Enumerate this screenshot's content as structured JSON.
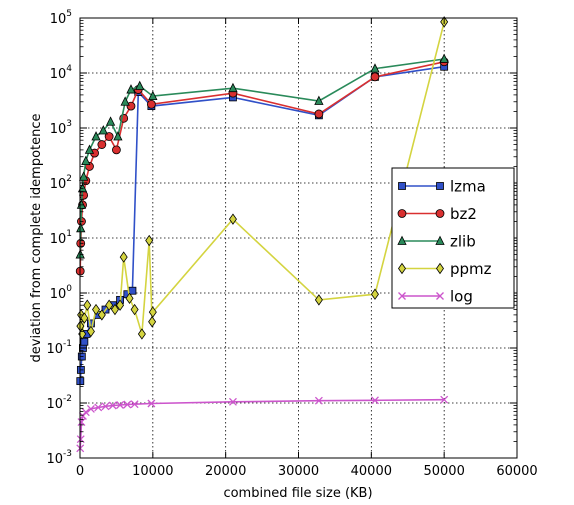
{
  "chart_data": {
    "type": "line",
    "title": "",
    "xlabel": "combined file size (KB)",
    "ylabel": "deviation from complete idempotence",
    "xlim": [
      0,
      60000
    ],
    "ylim": [
      0.001,
      100000
    ],
    "yscale": "log",
    "grid": true,
    "legend_position": "center-right",
    "x_ticks": [
      {
        "value": 0,
        "label": "0"
      },
      {
        "value": 10000,
        "label": "10000"
      },
      {
        "value": 20000,
        "label": "20000"
      },
      {
        "value": 30000,
        "label": "30000"
      },
      {
        "value": 40000,
        "label": "40000"
      },
      {
        "value": 50000,
        "label": "50000"
      },
      {
        "value": 60000,
        "label": "60000"
      }
    ],
    "y_ticks": [
      {
        "value": 0.001,
        "base": "10",
        "exp": "-3"
      },
      {
        "value": 0.01,
        "base": "10",
        "exp": "-2"
      },
      {
        "value": 0.1,
        "base": "10",
        "exp": "-1"
      },
      {
        "value": 1,
        "base": "10",
        "exp": "0"
      },
      {
        "value": 10,
        "base": "10",
        "exp": "1"
      },
      {
        "value": 100,
        "base": "10",
        "exp": "2"
      },
      {
        "value": 1000,
        "base": "10",
        "exp": "3"
      },
      {
        "value": 10000,
        "base": "10",
        "exp": "4"
      },
      {
        "value": 100000,
        "base": "10",
        "exp": "5"
      }
    ],
    "series": [
      {
        "name": "lzma",
        "color": "#3050c8",
        "marker": "square",
        "points": [
          [
            40,
            0.025
          ],
          [
            120,
            0.04
          ],
          [
            250,
            0.07
          ],
          [
            400,
            0.1
          ],
          [
            600,
            0.13
          ],
          [
            900,
            0.18
          ],
          [
            1500,
            0.28
          ],
          [
            2500,
            0.4
          ],
          [
            3500,
            0.5
          ],
          [
            4500,
            0.6
          ],
          [
            5500,
            0.75
          ],
          [
            6500,
            0.95
          ],
          [
            7200,
            1.1
          ],
          [
            8000,
            4500
          ],
          [
            9800,
            2500
          ],
          [
            21000,
            3600
          ],
          [
            32800,
            1700
          ],
          [
            40500,
            8500
          ],
          [
            50000,
            13000
          ]
        ]
      },
      {
        "name": "bz2",
        "color": "#d93030",
        "marker": "circle",
        "points": [
          [
            30,
            2.5
          ],
          [
            100,
            8
          ],
          [
            200,
            20
          ],
          [
            350,
            40
          ],
          [
            500,
            60
          ],
          [
            800,
            110
          ],
          [
            1300,
            200
          ],
          [
            2000,
            350
          ],
          [
            3000,
            500
          ],
          [
            4000,
            700
          ],
          [
            5000,
            400
          ],
          [
            6000,
            1500
          ],
          [
            7000,
            2500
          ],
          [
            8000,
            5000
          ],
          [
            9800,
            2700
          ],
          [
            21000,
            4300
          ],
          [
            32800,
            1800
          ],
          [
            40500,
            8500
          ],
          [
            50000,
            16000
          ]
        ]
      },
      {
        "name": "zlib",
        "color": "#2a8a5a",
        "marker": "triangle",
        "points": [
          [
            30,
            5
          ],
          [
            100,
            15
          ],
          [
            200,
            40
          ],
          [
            350,
            80
          ],
          [
            500,
            130
          ],
          [
            800,
            250
          ],
          [
            1300,
            400
          ],
          [
            2200,
            700
          ],
          [
            3200,
            900
          ],
          [
            4200,
            1300
          ],
          [
            5200,
            700
          ],
          [
            6200,
            3000
          ],
          [
            7000,
            5000
          ],
          [
            8200,
            5800
          ],
          [
            10000,
            3800
          ],
          [
            21000,
            5300
          ],
          [
            32800,
            3100
          ],
          [
            40500,
            12000
          ],
          [
            50000,
            18000
          ]
        ]
      },
      {
        "name": "ppmz",
        "color": "#d4d440",
        "marker": "diamond",
        "points": [
          [
            50,
            0.25
          ],
          [
            150,
            0.4
          ],
          [
            300,
            0.18
          ],
          [
            600,
            0.35
          ],
          [
            1000,
            0.6
          ],
          [
            1500,
            0.2
          ],
          [
            2200,
            0.5
          ],
          [
            3000,
            0.4
          ],
          [
            4000,
            0.6
          ],
          [
            4800,
            0.5
          ],
          [
            5500,
            0.6
          ],
          [
            6000,
            4.5
          ],
          [
            6800,
            0.8
          ],
          [
            7500,
            0.5
          ],
          [
            8500,
            0.18
          ],
          [
            9500,
            9
          ],
          [
            9900,
            0.3
          ],
          [
            10000,
            0.45
          ],
          [
            21000,
            22
          ],
          [
            32800,
            0.75
          ],
          [
            40500,
            0.95
          ],
          [
            50000,
            85000
          ]
        ]
      },
      {
        "name": "log",
        "color": "#cc55cc",
        "marker": "x",
        "points": [
          [
            30,
            0.0015
          ],
          [
            100,
            0.0022
          ],
          [
            200,
            0.0045
          ],
          [
            400,
            0.0058
          ],
          [
            800,
            0.0068
          ],
          [
            1500,
            0.0078
          ],
          [
            2500,
            0.0083
          ],
          [
            3500,
            0.0087
          ],
          [
            4500,
            0.009
          ],
          [
            5500,
            0.0092
          ],
          [
            6500,
            0.0094
          ],
          [
            7500,
            0.0095
          ],
          [
            9800,
            0.0098
          ],
          [
            21000,
            0.0105
          ],
          [
            32800,
            0.011
          ],
          [
            40500,
            0.0112
          ],
          [
            50000,
            0.0115
          ]
        ]
      }
    ]
  }
}
